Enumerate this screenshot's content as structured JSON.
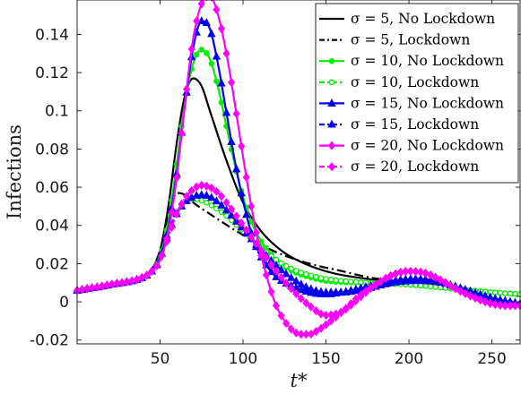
{
  "chart_data": {
    "type": "line",
    "xlabel": "t*",
    "ylabel": "Infections",
    "xlim": [
      0,
      267
    ],
    "ylim": [
      -0.022,
      0.158
    ],
    "xticks": [
      50,
      100,
      150,
      200,
      250
    ],
    "xtick_labels": [
      "50",
      "100",
      "150",
      "200",
      "250"
    ],
    "yticks": [
      -0.02,
      0,
      0.02,
      0.04,
      0.06,
      0.08,
      0.1,
      0.12,
      0.14
    ],
    "ytick_labels": [
      "-0.02",
      "0",
      "0.02",
      "0.04",
      "0.06",
      "0.08",
      "0.1",
      "0.12",
      "0.14"
    ],
    "grid": false,
    "legend_position": "top-right",
    "legend_labels": [
      "σ = 5, No Lockdown",
      "σ = 5, Lockdown",
      "σ = 10, No Lockdown",
      "σ = 10, Lockdown",
      "σ = 15, No Lockdown",
      "σ = 15, Lockdown",
      "σ = 20, No Lockdown",
      "σ = 20, Lockdown"
    ],
    "series": [
      {
        "name": "σ = 5, No Lockdown",
        "color": "#000000",
        "dash": "solid",
        "marker": "none",
        "x": [
          0,
          20,
          40,
          45,
          50,
          55,
          60,
          65,
          70,
          75,
          80,
          90,
          100,
          110,
          120,
          130,
          150,
          175,
          200,
          225,
          250,
          267
        ],
        "y": [
          0.006,
          0.009,
          0.013,
          0.017,
          0.027,
          0.05,
          0.083,
          0.108,
          0.117,
          0.113,
          0.1,
          0.074,
          0.052,
          0.038,
          0.029,
          0.023,
          0.016,
          0.012,
          0.01,
          0.008,
          0.005,
          0.003
        ]
      },
      {
        "name": "σ = 5, Lockdown",
        "color": "#000000",
        "dash": "dashdot",
        "marker": "none",
        "x": [
          0,
          20,
          40,
          45,
          50,
          55,
          60,
          65,
          70,
          80,
          100,
          120,
          140,
          160,
          175,
          200,
          225,
          250,
          267
        ],
        "y": [
          0.006,
          0.009,
          0.013,
          0.017,
          0.027,
          0.045,
          0.057,
          0.056,
          0.052,
          0.046,
          0.035,
          0.026,
          0.02,
          0.016,
          0.013,
          0.01,
          0.008,
          0.005,
          0.003
        ]
      },
      {
        "name": "σ = 10, No Lockdown",
        "color": "#00ee00",
        "dash": "solid",
        "marker": "circle",
        "x": [
          0,
          20,
          40,
          45,
          50,
          55,
          60,
          65,
          70,
          75,
          80,
          85,
          90,
          95,
          100,
          105,
          110,
          115,
          120,
          130,
          140,
          150,
          175,
          200,
          225,
          250,
          267
        ],
        "y": [
          0.006,
          0.009,
          0.013,
          0.016,
          0.024,
          0.042,
          0.072,
          0.104,
          0.125,
          0.132,
          0.127,
          0.112,
          0.092,
          0.072,
          0.055,
          0.042,
          0.033,
          0.027,
          0.022,
          0.016,
          0.013,
          0.011,
          0.01,
          0.009,
          0.007,
          0.005,
          0.004
        ]
      },
      {
        "name": "σ = 10, Lockdown",
        "color": "#00ee00",
        "dash": "dashdot",
        "marker": "circle",
        "x": [
          0,
          20,
          40,
          45,
          50,
          55,
          60,
          65,
          70,
          75,
          80,
          90,
          100,
          110,
          120,
          130,
          140,
          150,
          175,
          200,
          225,
          250,
          267
        ],
        "y": [
          0.006,
          0.009,
          0.013,
          0.016,
          0.024,
          0.038,
          0.047,
          0.052,
          0.054,
          0.053,
          0.051,
          0.045,
          0.037,
          0.029,
          0.022,
          0.017,
          0.014,
          0.012,
          0.01,
          0.009,
          0.007,
          0.005,
          0.004
        ]
      },
      {
        "name": "σ = 15, No Lockdown",
        "color": "#0000ee",
        "dash": "solid",
        "marker": "triangle",
        "x": [
          0,
          20,
          40,
          45,
          50,
          55,
          60,
          65,
          70,
          75,
          80,
          85,
          90,
          95,
          100,
          105,
          110,
          115,
          120,
          130,
          140,
          150,
          160,
          175,
          190,
          205,
          220,
          235,
          250,
          267
        ],
        "y": [
          0.006,
          0.009,
          0.013,
          0.016,
          0.023,
          0.039,
          0.067,
          0.103,
          0.133,
          0.147,
          0.143,
          0.124,
          0.099,
          0.074,
          0.053,
          0.036,
          0.025,
          0.018,
          0.013,
          0.008,
          0.005,
          0.004,
          0.005,
          0.008,
          0.011,
          0.012,
          0.01,
          0.006,
          0.002,
          -0.001
        ]
      },
      {
        "name": "σ = 15, Lockdown",
        "color": "#0000ee",
        "dash": "dashdot",
        "marker": "triangle",
        "x": [
          0,
          20,
          40,
          45,
          50,
          55,
          60,
          65,
          70,
          75,
          80,
          90,
          100,
          110,
          120,
          130,
          140,
          150,
          160,
          175,
          190,
          205,
          220,
          235,
          250,
          267
        ],
        "y": [
          0.006,
          0.009,
          0.013,
          0.016,
          0.023,
          0.036,
          0.046,
          0.052,
          0.055,
          0.056,
          0.055,
          0.048,
          0.038,
          0.028,
          0.019,
          0.012,
          0.007,
          0.005,
          0.005,
          0.007,
          0.01,
          0.011,
          0.01,
          0.006,
          0.002,
          -0.001
        ]
      },
      {
        "name": "σ = 20, No Lockdown",
        "color": "#ff00ff",
        "dash": "solid",
        "marker": "diamond",
        "x": [
          0,
          20,
          40,
          45,
          50,
          55,
          60,
          65,
          70,
          75,
          80,
          85,
          90,
          95,
          100,
          105,
          110,
          115,
          120,
          125,
          130,
          135,
          140,
          145,
          150,
          160,
          170,
          180,
          190,
          200,
          210,
          220,
          230,
          240,
          250,
          260,
          267
        ],
        "y": [
          0.006,
          0.009,
          0.013,
          0.016,
          0.022,
          0.037,
          0.065,
          0.104,
          0.138,
          0.156,
          0.16,
          0.15,
          0.13,
          0.104,
          0.076,
          0.05,
          0.028,
          0.011,
          -0.002,
          -0.01,
          -0.015,
          -0.017,
          -0.017,
          -0.015,
          -0.012,
          -0.005,
          0.003,
          0.009,
          0.014,
          0.016,
          0.015,
          0.011,
          0.006,
          0.002,
          -0.001,
          -0.002,
          -0.002
        ]
      },
      {
        "name": "σ = 20, Lockdown",
        "color": "#ff00ff",
        "dash": "dashdot",
        "marker": "diamond",
        "x": [
          0,
          20,
          40,
          45,
          50,
          55,
          60,
          65,
          70,
          75,
          80,
          85,
          90,
          100,
          110,
          120,
          130,
          140,
          150,
          160,
          170,
          180,
          190,
          200,
          210,
          220,
          230,
          240,
          250,
          260,
          267
        ],
        "y": [
          0.006,
          0.009,
          0.013,
          0.016,
          0.022,
          0.034,
          0.046,
          0.054,
          0.059,
          0.061,
          0.06,
          0.057,
          0.052,
          0.04,
          0.028,
          0.016,
          0.006,
          -0.002,
          -0.007,
          -0.005,
          0.002,
          0.009,
          0.014,
          0.016,
          0.015,
          0.011,
          0.006,
          0.002,
          -0.001,
          -0.002,
          -0.002
        ]
      }
    ]
  }
}
